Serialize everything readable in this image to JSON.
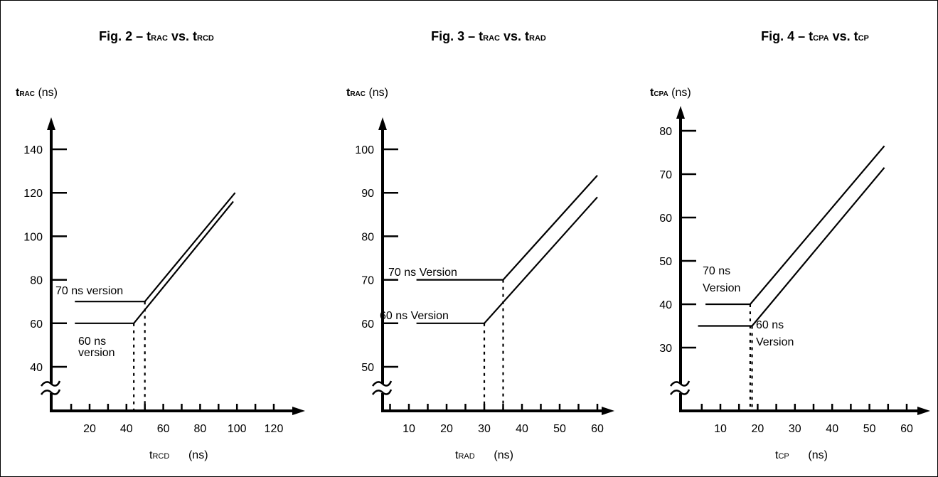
{
  "chart_data": [
    {
      "type": "line",
      "title": "Fig. 2 – tRAC vs. tRCD",
      "title_parts": {
        "fig": "Fig. 2",
        "dash": "–",
        "y_t": "t",
        "y_sub": "RAC",
        "vs": "vs.",
        "x_t": "t",
        "x_sub": "RCD"
      },
      "ylabel": {
        "t": "t",
        "sub": "RAC",
        "unit": "(ns)"
      },
      "xlabel": {
        "t": "t",
        "sub": "RCD",
        "unit": "(ns)"
      },
      "x_ticks": [
        20,
        40,
        60,
        80,
        100,
        120
      ],
      "y_ticks": [
        40,
        60,
        80,
        100,
        120,
        140
      ],
      "axis_break": true,
      "series": [
        {
          "name": "70 ns version",
          "points": [
            [
              12,
              70
            ],
            [
              50,
              70
            ],
            [
              99,
              120
            ]
          ],
          "drop_x": 50
        },
        {
          "name": "60 ns version",
          "points": [
            [
              12,
              60
            ],
            [
              44,
              60
            ],
            [
              98,
              116
            ]
          ],
          "drop_x": 44
        }
      ],
      "annotations": [
        "70 ns version",
        "60 ns",
        "version"
      ]
    },
    {
      "type": "line",
      "title": "Fig. 3 – tRAC vs. tRAD",
      "title_parts": {
        "fig": "Fig. 3",
        "dash": "–",
        "y_t": "t",
        "y_sub": "RAC",
        "vs": "vs.",
        "x_t": "t",
        "x_sub": "RAD"
      },
      "ylabel": {
        "t": "t",
        "sub": "RAC",
        "unit": "(ns)"
      },
      "xlabel": {
        "t": "t",
        "sub": "RAD",
        "unit": "(ns)"
      },
      "x_ticks": [
        10,
        20,
        30,
        40,
        50,
        60
      ],
      "y_ticks": [
        50,
        60,
        70,
        80,
        90,
        100
      ],
      "axis_break": true,
      "series": [
        {
          "name": "70 ns Version",
          "points": [
            [
              12,
              70
            ],
            [
              35,
              70
            ],
            [
              60,
              94
            ]
          ],
          "drop_x": 35
        },
        {
          "name": "60 ns Version",
          "points": [
            [
              12,
              60
            ],
            [
              30,
              60
            ],
            [
              60,
              89
            ]
          ],
          "drop_x": 30
        }
      ],
      "annotations": [
        "70 ns Version",
        "60 ns Version"
      ]
    },
    {
      "type": "line",
      "title": "Fig. 4 – tCPA vs. tCP",
      "title_parts": {
        "fig": "Fig. 4",
        "dash": "–",
        "y_t": "t",
        "y_sub": "CPA",
        "vs": "vs.",
        "x_t": "t",
        "x_sub": "CP"
      },
      "ylabel": {
        "t": "t",
        "sub": "CPA",
        "unit": "(ns)"
      },
      "xlabel": {
        "t": "t",
        "sub": "CP",
        "unit": "(ns)"
      },
      "x_ticks": [
        10,
        20,
        30,
        40,
        50,
        60
      ],
      "y_ticks": [
        30,
        40,
        50,
        60,
        70,
        80
      ],
      "axis_break": true,
      "series": [
        {
          "name": "70 ns Version",
          "points": [
            [
              6,
              40
            ],
            [
              18,
              40
            ],
            [
              54,
              76.5
            ]
          ],
          "drop_x": 18
        },
        {
          "name": "60 ns Version",
          "points": [
            [
              4,
              35
            ],
            [
              18.5,
              35
            ],
            [
              54,
              71.5
            ]
          ],
          "drop_x": 18.5
        }
      ],
      "annotations": [
        "70 ns",
        "Version",
        "60 ns",
        "Version"
      ]
    }
  ]
}
